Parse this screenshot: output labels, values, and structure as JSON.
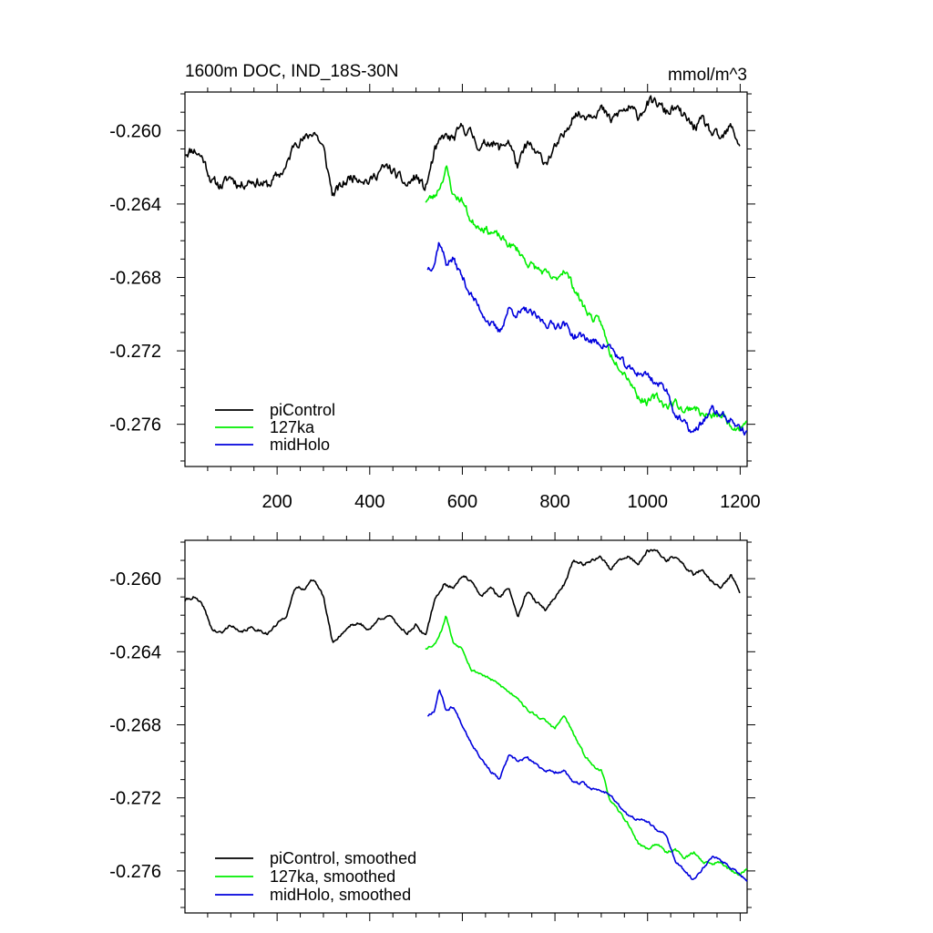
{
  "figure": {
    "title_left": "1600m DOC, IND_18S-30N",
    "title_right": "mmol/m^3"
  },
  "colors": {
    "piControl": "#000000",
    "127ka": "#00ee00",
    "midHolo": "#0000dd"
  },
  "chart_data": [
    {
      "type": "line",
      "title": "1600m DOC, IND_18S-30N",
      "units": "mmol/m^3",
      "xlim": [
        1,
        1215
      ],
      "ylim": [
        -0.2783,
        -0.2579
      ],
      "xticks": [
        200,
        400,
        600,
        800,
        1000,
        1200
      ],
      "xtick_labels": [
        "200",
        "400",
        "600",
        "800",
        "1000",
        "1200"
      ],
      "yticks": [
        -0.26,
        -0.264,
        -0.268,
        -0.272,
        -0.276
      ],
      "ytick_labels": [
        "-0.260",
        "-0.264",
        "-0.268",
        "-0.272",
        "-0.276"
      ],
      "legend": [
        "piControl",
        "127ka",
        "midHolo"
      ],
      "legend_position": "bottom-left",
      "series": [
        {
          "name": "piControl",
          "color_key": "piControl",
          "noise": 0.00045,
          "seed": 11,
          "x": [
            1,
            20,
            40,
            60,
            80,
            100,
            120,
            140,
            160,
            180,
            200,
            220,
            240,
            260,
            280,
            300,
            320,
            340,
            360,
            380,
            400,
            420,
            440,
            460,
            480,
            500,
            520,
            540,
            560,
            580,
            600,
            620,
            640,
            660,
            680,
            700,
            720,
            740,
            760,
            780,
            800,
            820,
            840,
            860,
            880,
            900,
            920,
            940,
            960,
            980,
            1000,
            1020,
            1040,
            1060,
            1080,
            1100,
            1120,
            1140,
            1160,
            1180,
            1200
          ],
          "y": [
            -0.2612,
            -0.261,
            -0.2615,
            -0.2628,
            -0.263,
            -0.2625,
            -0.263,
            -0.2627,
            -0.2628,
            -0.263,
            -0.2625,
            -0.262,
            -0.2605,
            -0.2605,
            -0.26,
            -0.261,
            -0.2635,
            -0.263,
            -0.2625,
            -0.2625,
            -0.2628,
            -0.2622,
            -0.262,
            -0.2625,
            -0.263,
            -0.2625,
            -0.2632,
            -0.2612,
            -0.2603,
            -0.2605,
            -0.2598,
            -0.2602,
            -0.261,
            -0.2605,
            -0.261,
            -0.2605,
            -0.262,
            -0.2607,
            -0.2613,
            -0.2617,
            -0.261,
            -0.2603,
            -0.259,
            -0.2592,
            -0.259,
            -0.2588,
            -0.2595,
            -0.259,
            -0.2588,
            -0.2592,
            -0.2585,
            -0.2585,
            -0.259,
            -0.2588,
            -0.2593,
            -0.2598,
            -0.2595,
            -0.2602,
            -0.2605,
            -0.2598,
            -0.2608
          ]
        },
        {
          "name": "127ka",
          "color_key": "127ka",
          "noise": 0.00035,
          "seed": 23,
          "x": [
            520,
            540,
            555,
            565,
            580,
            600,
            620,
            640,
            660,
            680,
            700,
            720,
            740,
            760,
            780,
            800,
            820,
            840,
            860,
            880,
            900,
            920,
            940,
            960,
            980,
            1000,
            1020,
            1040,
            1060,
            1080,
            1100,
            1120,
            1140,
            1160,
            1180,
            1200,
            1215
          ],
          "y": [
            -0.2638,
            -0.2636,
            -0.2628,
            -0.262,
            -0.2635,
            -0.2638,
            -0.265,
            -0.2652,
            -0.2655,
            -0.2658,
            -0.2662,
            -0.2665,
            -0.2672,
            -0.2675,
            -0.2678,
            -0.2682,
            -0.2675,
            -0.2685,
            -0.2695,
            -0.2702,
            -0.2705,
            -0.2722,
            -0.2728,
            -0.2735,
            -0.2745,
            -0.2748,
            -0.2745,
            -0.275,
            -0.2748,
            -0.2753,
            -0.275,
            -0.2755,
            -0.2756,
            -0.2755,
            -0.276,
            -0.2762,
            -0.2758
          ]
        },
        {
          "name": "midHolo",
          "color_key": "midHolo",
          "noise": 0.00035,
          "seed": 37,
          "x": [
            525,
            540,
            550,
            565,
            580,
            600,
            620,
            640,
            660,
            680,
            700,
            720,
            740,
            760,
            780,
            800,
            820,
            840,
            860,
            880,
            900,
            920,
            940,
            960,
            980,
            1000,
            1020,
            1040,
            1060,
            1080,
            1100,
            1120,
            1140,
            1160,
            1180,
            1200,
            1215
          ],
          "y": [
            -0.2675,
            -0.2672,
            -0.266,
            -0.2672,
            -0.267,
            -0.268,
            -0.269,
            -0.2698,
            -0.2705,
            -0.271,
            -0.2697,
            -0.27,
            -0.2698,
            -0.2702,
            -0.2705,
            -0.2706,
            -0.2705,
            -0.2712,
            -0.2712,
            -0.2715,
            -0.2716,
            -0.2718,
            -0.2725,
            -0.273,
            -0.2732,
            -0.2733,
            -0.2738,
            -0.274,
            -0.2755,
            -0.276,
            -0.2765,
            -0.2758,
            -0.2752,
            -0.2755,
            -0.2758,
            -0.2762,
            -0.2765
          ]
        }
      ]
    },
    {
      "type": "line",
      "title": "",
      "xlim": [
        1,
        1215
      ],
      "ylim": [
        -0.2783,
        -0.2579
      ],
      "xticks": [
        200,
        400,
        600,
        800,
        1000,
        1200
      ],
      "xtick_labels": [],
      "yticks": [
        -0.26,
        -0.264,
        -0.268,
        -0.272,
        -0.276
      ],
      "ytick_labels": [
        "-0.260",
        "-0.264",
        "-0.268",
        "-0.272",
        "-0.276"
      ],
      "legend": [
        "piControl, smoothed",
        "127ka, smoothed",
        "midHolo, smoothed"
      ],
      "legend_position": "bottom-left",
      "series": [
        {
          "name": "piControl, smoothed",
          "color_key": "piControl",
          "noise": 0.00014,
          "seed": 41,
          "x": [
            1,
            20,
            40,
            60,
            80,
            100,
            120,
            140,
            160,
            180,
            200,
            220,
            240,
            260,
            280,
            300,
            320,
            340,
            360,
            380,
            400,
            420,
            440,
            460,
            480,
            500,
            520,
            540,
            560,
            580,
            600,
            620,
            640,
            660,
            680,
            700,
            720,
            740,
            760,
            780,
            800,
            820,
            840,
            860,
            880,
            900,
            920,
            940,
            960,
            980,
            1000,
            1020,
            1040,
            1060,
            1080,
            1100,
            1120,
            1140,
            1160,
            1180,
            1200
          ],
          "y": [
            -0.2612,
            -0.261,
            -0.2615,
            -0.2628,
            -0.263,
            -0.2625,
            -0.263,
            -0.2627,
            -0.2628,
            -0.263,
            -0.2625,
            -0.262,
            -0.2605,
            -0.2605,
            -0.26,
            -0.261,
            -0.2635,
            -0.263,
            -0.2625,
            -0.2625,
            -0.2628,
            -0.2622,
            -0.262,
            -0.2625,
            -0.263,
            -0.2625,
            -0.2632,
            -0.2612,
            -0.2603,
            -0.2605,
            -0.2598,
            -0.2602,
            -0.261,
            -0.2605,
            -0.261,
            -0.2605,
            -0.262,
            -0.2607,
            -0.2613,
            -0.2617,
            -0.261,
            -0.2603,
            -0.259,
            -0.2592,
            -0.259,
            -0.2588,
            -0.2595,
            -0.259,
            -0.2588,
            -0.2592,
            -0.2585,
            -0.2585,
            -0.259,
            -0.2588,
            -0.2593,
            -0.2598,
            -0.2595,
            -0.2602,
            -0.2605,
            -0.2598,
            -0.2608
          ]
        },
        {
          "name": "127ka, smoothed",
          "color_key": "127ka",
          "noise": 0.00012,
          "seed": 53,
          "x": [
            520,
            540,
            555,
            565,
            580,
            600,
            620,
            640,
            660,
            680,
            700,
            720,
            740,
            760,
            780,
            800,
            820,
            840,
            860,
            880,
            900,
            920,
            940,
            960,
            980,
            1000,
            1020,
            1040,
            1060,
            1080,
            1100,
            1120,
            1140,
            1160,
            1180,
            1200,
            1215
          ],
          "y": [
            -0.2638,
            -0.2636,
            -0.2628,
            -0.262,
            -0.2635,
            -0.2638,
            -0.265,
            -0.2652,
            -0.2655,
            -0.2658,
            -0.2662,
            -0.2665,
            -0.2672,
            -0.2675,
            -0.2678,
            -0.2682,
            -0.2675,
            -0.2685,
            -0.2695,
            -0.2702,
            -0.2705,
            -0.2722,
            -0.2728,
            -0.2735,
            -0.2745,
            -0.2748,
            -0.2745,
            -0.275,
            -0.2748,
            -0.2753,
            -0.275,
            -0.2755,
            -0.2756,
            -0.2755,
            -0.276,
            -0.2762,
            -0.2758
          ]
        },
        {
          "name": "midHolo, smoothed",
          "color_key": "midHolo",
          "noise": 0.00012,
          "seed": 67,
          "x": [
            525,
            540,
            550,
            565,
            580,
            600,
            620,
            640,
            660,
            680,
            700,
            720,
            740,
            760,
            780,
            800,
            820,
            840,
            860,
            880,
            900,
            920,
            940,
            960,
            980,
            1000,
            1020,
            1040,
            1060,
            1080,
            1100,
            1120,
            1140,
            1160,
            1180,
            1200,
            1215
          ],
          "y": [
            -0.2675,
            -0.2672,
            -0.266,
            -0.2672,
            -0.267,
            -0.268,
            -0.269,
            -0.2698,
            -0.2705,
            -0.271,
            -0.2697,
            -0.27,
            -0.2698,
            -0.2702,
            -0.2705,
            -0.2706,
            -0.2705,
            -0.2712,
            -0.2712,
            -0.2715,
            -0.2716,
            -0.2718,
            -0.2725,
            -0.273,
            -0.2732,
            -0.2733,
            -0.2738,
            -0.274,
            -0.2755,
            -0.276,
            -0.2765,
            -0.2758,
            -0.2752,
            -0.2755,
            -0.2758,
            -0.2762,
            -0.2765
          ]
        }
      ]
    }
  ]
}
